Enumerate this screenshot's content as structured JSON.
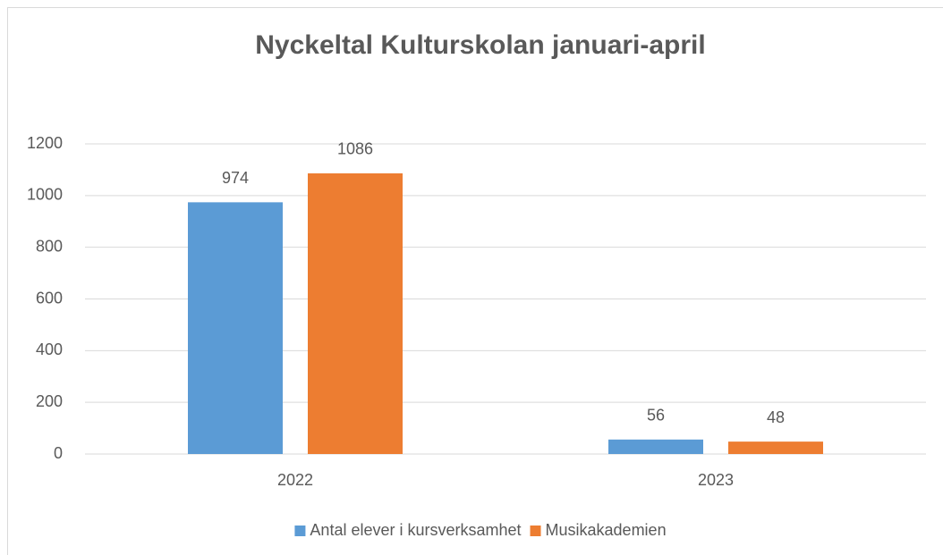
{
  "chart_data": {
    "type": "bar",
    "title": "Nyckeltal Kulturskolan januari-april",
    "categories": [
      "2022",
      "2023"
    ],
    "series": [
      {
        "name": "Antal elever i kursverksamhet",
        "color": "#5b9bd5",
        "values": [
          974,
          56
        ]
      },
      {
        "name": "Musikakademien",
        "color": "#ed7d31",
        "values": [
          1086,
          48
        ]
      }
    ],
    "ylim": [
      0,
      1200
    ],
    "yticks": [
      0,
      200,
      400,
      600,
      800,
      1000,
      1200
    ],
    "grid": true,
    "legend": "bottom"
  }
}
